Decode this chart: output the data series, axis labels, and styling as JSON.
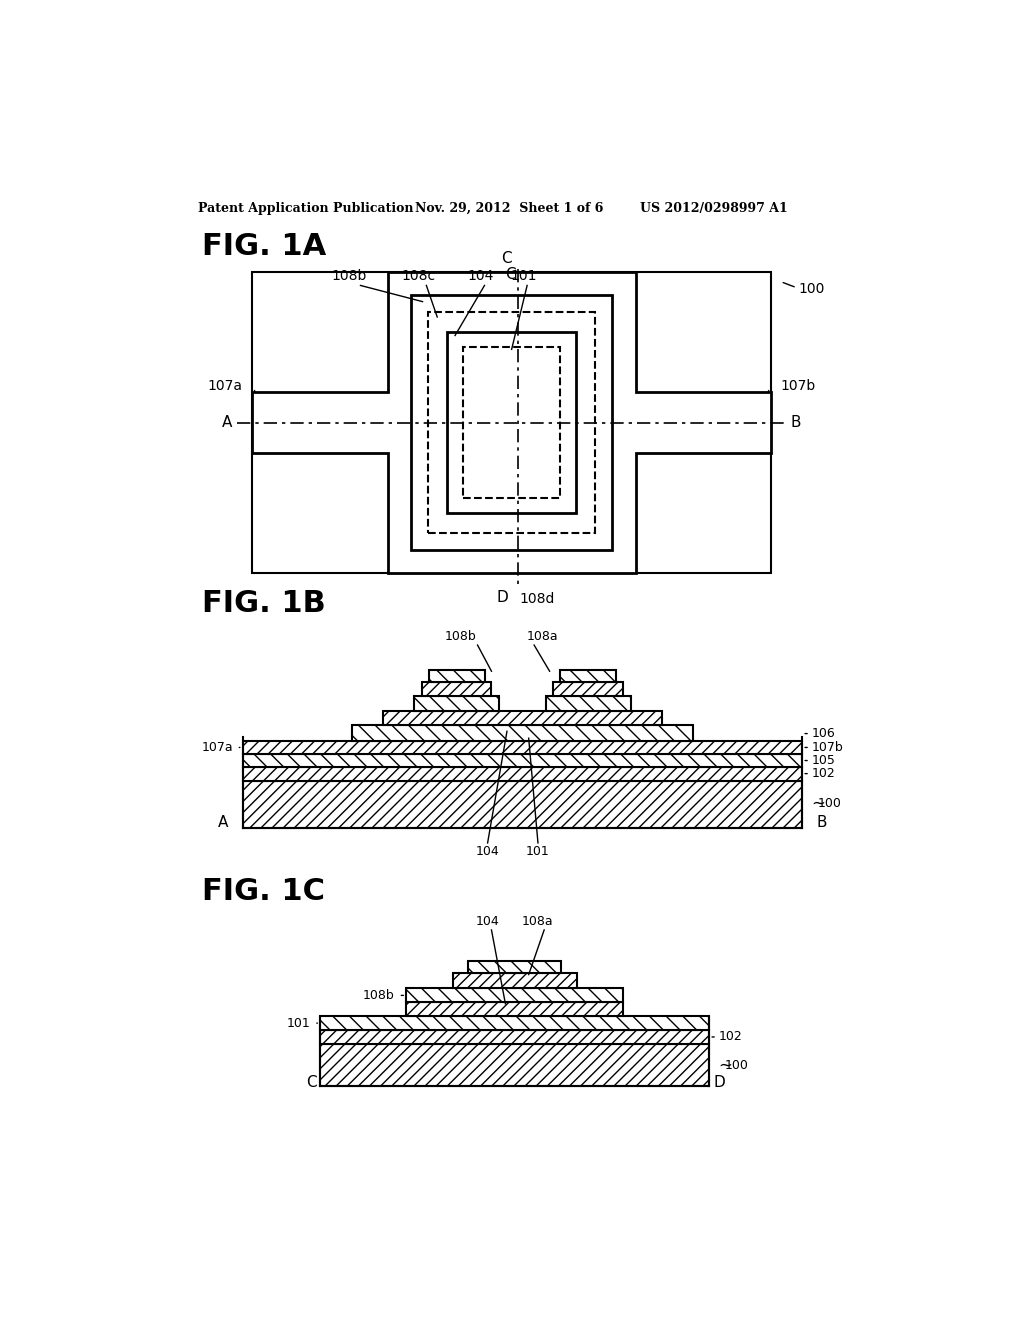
{
  "background_color": "#ffffff",
  "header_left": "Patent Application Publication",
  "header_mid": "Nov. 29, 2012  Sheet 1 of 6",
  "header_right": "US 2012/0298997 A1",
  "fig1a_label": "FIG. 1A",
  "fig1b_label": "FIG. 1B",
  "fig1c_label": "FIG. 1C"
}
